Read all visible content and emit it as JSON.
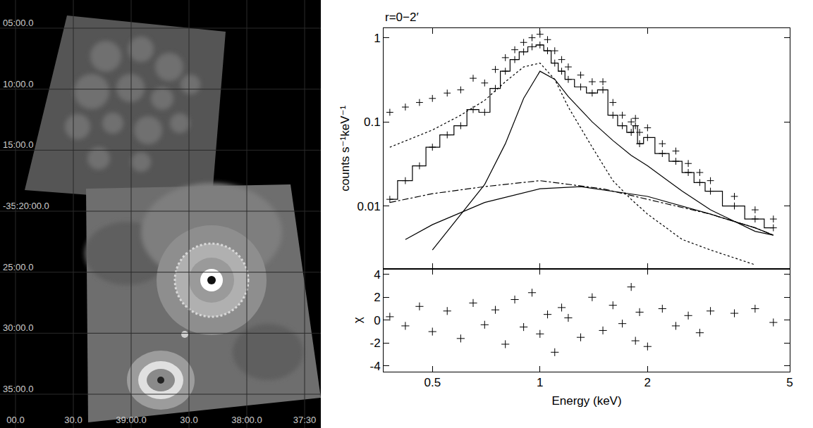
{
  "image": {
    "y_labels": [
      "05:00.0",
      "10:00.0",
      "15:00.0",
      "-35:20:00.0",
      "25:00.0",
      "30:00.0",
      "35:00.0"
    ],
    "x_labels": [
      "00.0",
      "30.0",
      "39:00.0",
      "30.0",
      "38:00.0",
      "37:30"
    ]
  },
  "chart_data": {
    "type": "line",
    "title": "r=0−2′",
    "x_label": "Energy (keV)",
    "y_label": "counts s⁻¹keV⁻¹",
    "log": true,
    "grid": false,
    "xlim": [
      0.365,
      5
    ],
    "xticks": [
      0.5,
      1,
      2,
      5
    ],
    "ylim": [
      0.0018,
      1.3
    ],
    "yticks": [
      0.01,
      0.1,
      1
    ],
    "series": [
      {
        "color": "#000000",
        "marker": "cross",
        "line_style": "none",
        "x": [
          0.38,
          0.42,
          0.46,
          0.5,
          0.55,
          0.6,
          0.65,
          0.7,
          0.75,
          0.8,
          0.85,
          0.9,
          0.95,
          1.0,
          1.05,
          1.1,
          1.15,
          1.2,
          1.3,
          1.4,
          1.5,
          1.6,
          1.7,
          1.8,
          1.85,
          1.9,
          2.0,
          2.2,
          2.4,
          2.6,
          2.8,
          3.0,
          3.5,
          4.0,
          4.5
        ],
        "values": [
          0.13,
          0.15,
          0.17,
          0.19,
          0.22,
          0.24,
          0.33,
          0.29,
          0.42,
          0.58,
          0.72,
          0.88,
          1.0,
          1.1,
          0.95,
          0.7,
          0.55,
          0.45,
          0.36,
          0.3,
          0.3,
          0.17,
          0.12,
          0.1,
          0.11,
          0.075,
          0.085,
          0.055,
          0.045,
          0.032,
          0.025,
          0.02,
          0.013,
          0.009,
          0.007
        ]
      },
      {
        "color": "#000000",
        "marker": "cross",
        "line_style": "step",
        "x": [
          0.38,
          0.42,
          0.46,
          0.5,
          0.55,
          0.6,
          0.65,
          0.7,
          0.75,
          0.8,
          0.85,
          0.9,
          0.95,
          1.0,
          1.05,
          1.1,
          1.15,
          1.2,
          1.3,
          1.4,
          1.5,
          1.6,
          1.7,
          1.8,
          1.85,
          1.9,
          2.0,
          2.2,
          2.4,
          2.6,
          2.8,
          3.0,
          3.5,
          4.0,
          4.5
        ],
        "values": [
          0.012,
          0.02,
          0.03,
          0.05,
          0.07,
          0.09,
          0.14,
          0.13,
          0.25,
          0.4,
          0.55,
          0.68,
          0.78,
          0.82,
          0.7,
          0.5,
          0.4,
          0.32,
          0.26,
          0.22,
          0.24,
          0.12,
          0.09,
          0.075,
          0.09,
          0.055,
          0.065,
          0.042,
          0.034,
          0.025,
          0.019,
          0.015,
          0.01,
          0.007,
          0.0055
        ]
      },
      {
        "color": "#000000",
        "marker": "none",
        "line_style": "dot",
        "x": [
          0.38,
          0.5,
          0.6,
          0.7,
          0.8,
          0.9,
          1.0,
          1.1,
          1.2,
          1.4,
          1.6,
          1.8,
          2.0,
          2.5,
          3.0,
          4.0
        ],
        "values": [
          0.05,
          0.08,
          0.12,
          0.18,
          0.3,
          0.45,
          0.5,
          0.32,
          0.15,
          0.05,
          0.02,
          0.012,
          0.008,
          0.004,
          0.003,
          0.002
        ]
      },
      {
        "color": "#000000",
        "marker": "none",
        "line_style": "solid",
        "x": [
          0.5,
          0.6,
          0.7,
          0.8,
          0.9,
          1.0,
          1.1,
          1.2,
          1.4,
          1.6,
          1.8,
          2.0,
          2.5,
          3.0,
          4.0,
          4.5
        ],
        "values": [
          0.003,
          0.008,
          0.018,
          0.055,
          0.19,
          0.4,
          0.32,
          0.2,
          0.1,
          0.06,
          0.04,
          0.03,
          0.015,
          0.009,
          0.005,
          0.0045
        ]
      },
      {
        "color": "#000000",
        "marker": "none",
        "line_style": "dashdot",
        "x": [
          0.38,
          0.5,
          0.7,
          1.0,
          1.5,
          2.0,
          3.0,
          4.0,
          4.5
        ],
        "values": [
          0.011,
          0.014,
          0.017,
          0.02,
          0.016,
          0.012,
          0.008,
          0.0055,
          0.0045
        ]
      },
      {
        "color": "#000000",
        "marker": "none",
        "line_style": "solid",
        "x": [
          0.42,
          0.5,
          0.7,
          1.0,
          1.3,
          2.0,
          3.0,
          4.0,
          4.5
        ],
        "values": [
          0.004,
          0.006,
          0.011,
          0.016,
          0.017,
          0.013,
          0.008,
          0.0055,
          0.0045
        ]
      }
    ],
    "residuals": {
      "y_label": "χ",
      "ylim": [
        -4.5,
        4.5
      ],
      "yticks": [
        -4,
        -2,
        0,
        2,
        4
      ],
      "color": "#000000",
      "marker": "cross",
      "x": [
        0.38,
        0.42,
        0.46,
        0.5,
        0.55,
        0.6,
        0.65,
        0.7,
        0.75,
        0.8,
        0.85,
        0.9,
        0.95,
        1.0,
        1.05,
        1.1,
        1.15,
        1.2,
        1.3,
        1.4,
        1.5,
        1.6,
        1.7,
        1.8,
        1.85,
        1.9,
        2.0,
        2.2,
        2.4,
        2.6,
        2.8,
        3.0,
        3.5,
        4.0,
        4.5
      ],
      "values": [
        0.3,
        -0.5,
        1.2,
        -1.0,
        0.8,
        -1.6,
        1.5,
        -0.4,
        0.9,
        -2.1,
        1.8,
        -0.6,
        2.4,
        -1.2,
        0.5,
        -2.8,
        1.1,
        0.2,
        -1.5,
        2.0,
        -0.9,
        1.3,
        -0.3,
        2.9,
        -1.8,
        0.7,
        -2.3,
        1.0,
        -0.5,
        0.4,
        -1.1,
        0.8,
        0.6,
        1.0,
        -0.2
      ]
    }
  }
}
